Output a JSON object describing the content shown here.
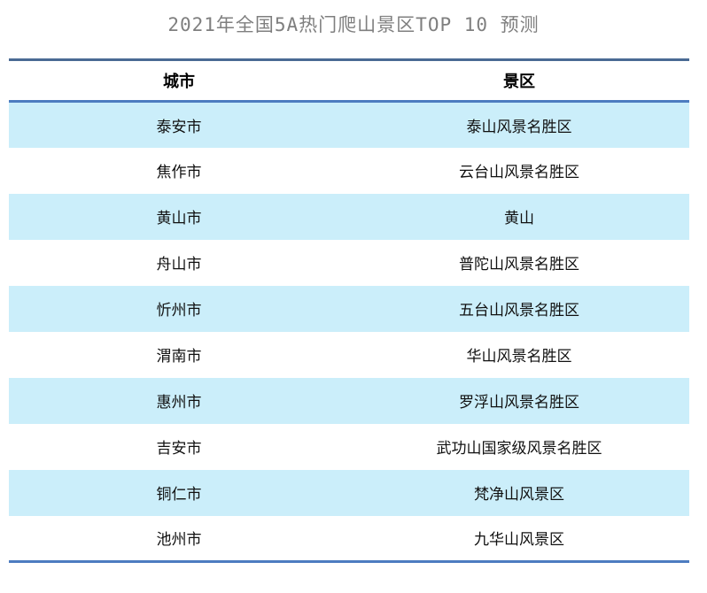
{
  "title": "2021年全国5A热门爬山景区TOP 10 预测",
  "chart_data": {
    "type": "table",
    "title": "2021年全国5A热门爬山景区TOP 10 预测",
    "columns": [
      "城市",
      "景区"
    ],
    "rows": [
      [
        "泰安市",
        "泰山风景名胜区"
      ],
      [
        "焦作市",
        "云台山风景名胜区"
      ],
      [
        "黄山市",
        "黄山"
      ],
      [
        "舟山市",
        "普陀山风景名胜区"
      ],
      [
        "忻州市",
        "五台山风景名胜区"
      ],
      [
        "渭南市",
        "华山风景名胜区"
      ],
      [
        "惠州市",
        "罗浮山风景名胜区"
      ],
      [
        "吉安市",
        "武功山国家级风景名胜区"
      ],
      [
        "铜仁市",
        "梵净山风景区"
      ],
      [
        "池州市",
        "九华山风景区"
      ]
    ],
    "layout": {
      "zebra_striping": true,
      "striped_rows": "odd",
      "header_align": "center",
      "cell_align": "center"
    }
  },
  "colors": {
    "zebra_row_bg": "#cbeefa",
    "top_border": "#4a6a94",
    "accent_border": "#4d7cc0",
    "title_text": "#7f7f7f",
    "cell_text": "#111111"
  }
}
